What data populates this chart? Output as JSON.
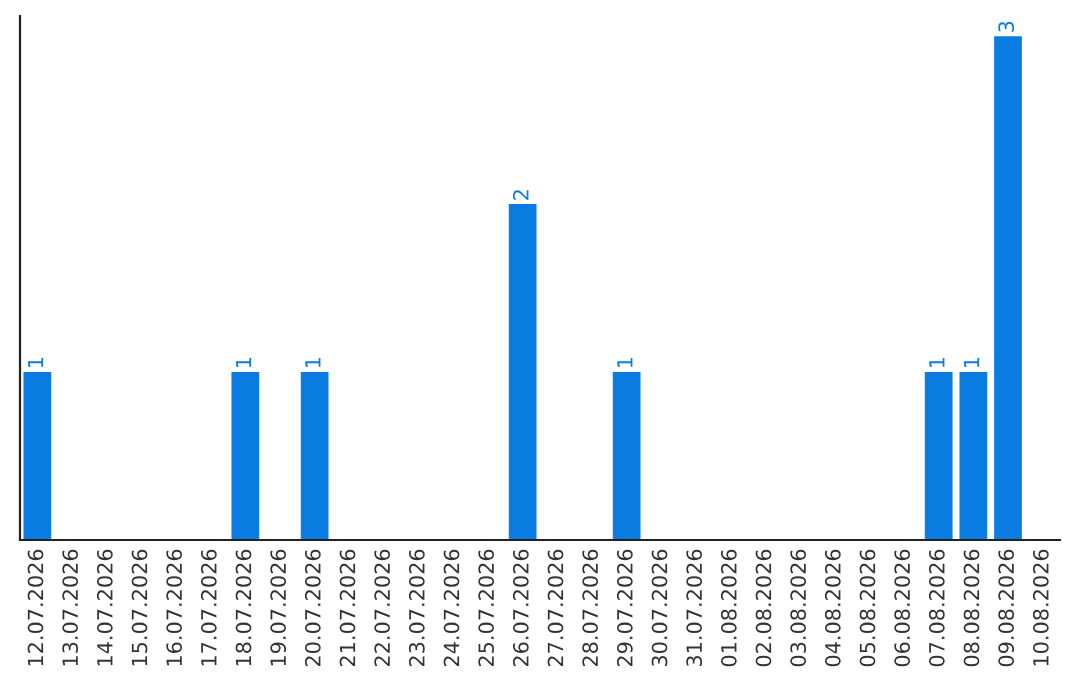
{
  "chart_data": {
    "type": "bar",
    "categories": [
      "12.07.2026",
      "13.07.2026",
      "14.07.2026",
      "15.07.2026",
      "16.07.2026",
      "17.07.2026",
      "18.07.2026",
      "19.07.2026",
      "20.07.2026",
      "21.07.2026",
      "22.07.2026",
      "23.07.2026",
      "24.07.2026",
      "25.07.2026",
      "26.07.2026",
      "27.07.2026",
      "28.07.2026",
      "29.07.2026",
      "30.07.2026",
      "31.07.2026",
      "01.08.2026",
      "02.08.2026",
      "03.08.2026",
      "04.08.2026",
      "05.08.2026",
      "06.08.2026",
      "07.08.2026",
      "08.08.2026",
      "09.08.2026",
      "10.08.2026"
    ],
    "values": [
      1,
      0,
      0,
      0,
      0,
      0,
      1,
      0,
      1,
      0,
      0,
      0,
      0,
      0,
      2,
      0,
      0,
      1,
      0,
      0,
      0,
      0,
      0,
      0,
      0,
      0,
      1,
      1,
      3,
      0
    ],
    "value_labels": [
      "1",
      null,
      null,
      null,
      null,
      null,
      "1",
      null,
      "1",
      null,
      null,
      null,
      null,
      null,
      "2",
      null,
      null,
      "1",
      null,
      null,
      null,
      null,
      null,
      null,
      null,
      null,
      "1",
      "1",
      "3",
      null
    ],
    "color": "#0a7be0",
    "tick_labels": "x",
    "grid": false,
    "legend": false
  }
}
